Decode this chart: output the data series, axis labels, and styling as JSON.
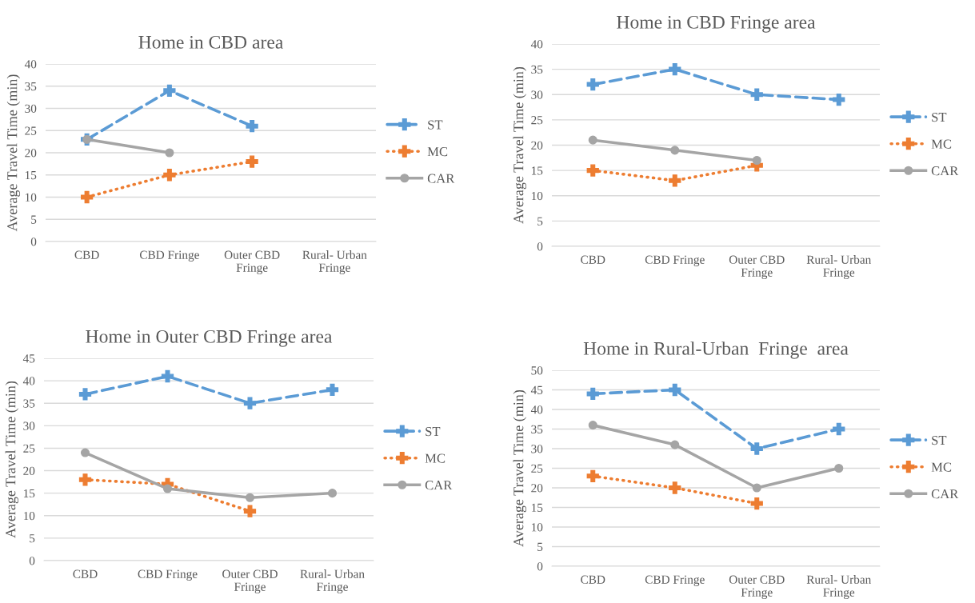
{
  "chart_data": [
    {
      "type": "line",
      "title": "Home in CBD area",
      "ylabel": "Average Travel Time (min)",
      "categories": [
        "CBD",
        "CBD Fringe",
        "Outer CBD\nFringe",
        "Rural- Urban\nFringe"
      ],
      "ylim": [
        0,
        40
      ],
      "yticks": [
        0,
        5,
        10,
        15,
        20,
        25,
        30,
        35,
        40
      ],
      "grid": "y",
      "legend": "right",
      "series": [
        {
          "name": "ST",
          "color": "#5b9bd5",
          "line_style": "dashed",
          "marker": "cross",
          "values": [
            23,
            34,
            26,
            null
          ]
        },
        {
          "name": "MC",
          "color": "#ed7d31",
          "line_style": "dotted",
          "marker": "cross",
          "values": [
            10,
            15,
            18,
            null
          ]
        },
        {
          "name": "CAR",
          "color": "#a5a5a5",
          "line_style": "solid",
          "marker": "circle",
          "values": [
            23,
            20,
            null,
            null
          ]
        }
      ]
    },
    {
      "type": "line",
      "title": "Home in CBD Fringe area",
      "ylabel": "Average Travel Time (min)",
      "categories": [
        "CBD",
        "CBD Fringe",
        "Outer CBD\nFringe",
        "Rural- Urban\nFringe"
      ],
      "ylim": [
        0,
        40
      ],
      "yticks": [
        0,
        5,
        10,
        15,
        20,
        25,
        30,
        35,
        40
      ],
      "grid": "y",
      "legend": "right",
      "series": [
        {
          "name": "ST",
          "color": "#5b9bd5",
          "line_style": "dashed",
          "marker": "cross",
          "values": [
            32,
            35,
            30,
            29
          ]
        },
        {
          "name": "MC",
          "color": "#ed7d31",
          "line_style": "dotted",
          "marker": "cross",
          "values": [
            15,
            13,
            16,
            null
          ]
        },
        {
          "name": "CAR",
          "color": "#a5a5a5",
          "line_style": "solid",
          "marker": "circle",
          "values": [
            21,
            19,
            17,
            null
          ]
        }
      ]
    },
    {
      "type": "line",
      "title": "Home in Outer CBD Fringe area",
      "ylabel": "Average Travel Time (min)",
      "categories": [
        "CBD",
        "CBD Fringe",
        "Outer CBD\nFringe",
        "Rural- Urban\nFringe"
      ],
      "ylim": [
        0,
        45
      ],
      "yticks": [
        0,
        5,
        10,
        15,
        20,
        25,
        30,
        35,
        40,
        45
      ],
      "grid": "y",
      "legend": "right",
      "series": [
        {
          "name": "ST",
          "color": "#5b9bd5",
          "line_style": "dashed",
          "marker": "cross",
          "values": [
            37,
            41,
            35,
            38
          ]
        },
        {
          "name": "MC",
          "color": "#ed7d31",
          "line_style": "dotted",
          "marker": "cross",
          "values": [
            18,
            17,
            11,
            null
          ]
        },
        {
          "name": "CAR",
          "color": "#a5a5a5",
          "line_style": "solid",
          "marker": "circle",
          "values": [
            24,
            16,
            14,
            15
          ]
        }
      ]
    },
    {
      "type": "line",
      "title": "Home in Rural-Urban  Fringe  area",
      "ylabel": "Average Travel Time (min)",
      "categories": [
        "CBD",
        "CBD Fringe",
        "Outer CBD\nFringe",
        "Rural- Urban\nFringe"
      ],
      "ylim": [
        0,
        50
      ],
      "yticks": [
        0,
        5,
        10,
        15,
        20,
        25,
        30,
        35,
        40,
        45,
        50
      ],
      "grid": "y",
      "legend": "right",
      "series": [
        {
          "name": "ST",
          "color": "#5b9bd5",
          "line_style": "dashed",
          "marker": "cross",
          "values": [
            44,
            45,
            30,
            35
          ]
        },
        {
          "name": "MC",
          "color": "#ed7d31",
          "line_style": "dotted",
          "marker": "cross",
          "values": [
            23,
            20,
            16,
            null
          ]
        },
        {
          "name": "CAR",
          "color": "#a5a5a5",
          "line_style": "solid",
          "marker": "circle",
          "values": [
            36,
            31,
            20,
            25
          ]
        }
      ]
    }
  ]
}
